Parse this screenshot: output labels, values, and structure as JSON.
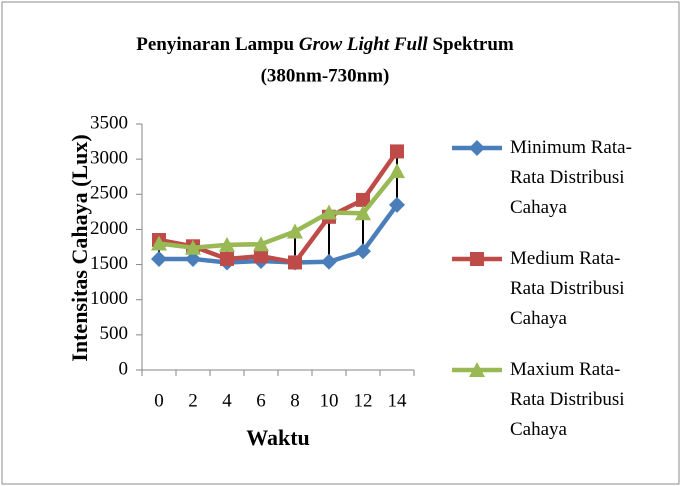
{
  "chart_data": {
    "type": "line",
    "title_parts": [
      {
        "text": "Penyinaran Lampu "
      },
      {
        "text": "Grow Light Full",
        "italic": true
      },
      {
        "text": " Spektrum"
      }
    ],
    "subtitle": "(380nm-730nm)",
    "x_label": "Waktu",
    "y_label": "Intensitas Cahaya (Lux)",
    "categories": [
      "0",
      "2",
      "4",
      "6",
      "8",
      "10",
      "12",
      "14"
    ],
    "series": [
      {
        "name": "Minimum Rata-Rata Distribusi Cahaya",
        "color": "#4a7ebb",
        "marker": "diamond",
        "values": [
          1580,
          1580,
          1530,
          1550,
          1530,
          1540,
          1690,
          2350
        ]
      },
      {
        "name": "Medium Rata-Rata Distribusi Cahaya",
        "color": "#be4b48",
        "marker": "square",
        "values": [
          1850,
          1760,
          1580,
          1620,
          1530,
          2180,
          2420,
          3110
        ]
      },
      {
        "name": "Maxium Rata-Rata Distribusi Cahaya",
        "color": "#98b954",
        "marker": "triangle",
        "values": [
          1800,
          1740,
          1780,
          1790,
          1970,
          2240,
          2230,
          2830
        ]
      }
    ],
    "high_low_lines": true,
    "ylim": [
      0,
      3500
    ],
    "yticks": [
      0,
      500,
      1000,
      1500,
      2000,
      2500,
      3000,
      3500
    ],
    "grid": false,
    "legend": "right"
  }
}
